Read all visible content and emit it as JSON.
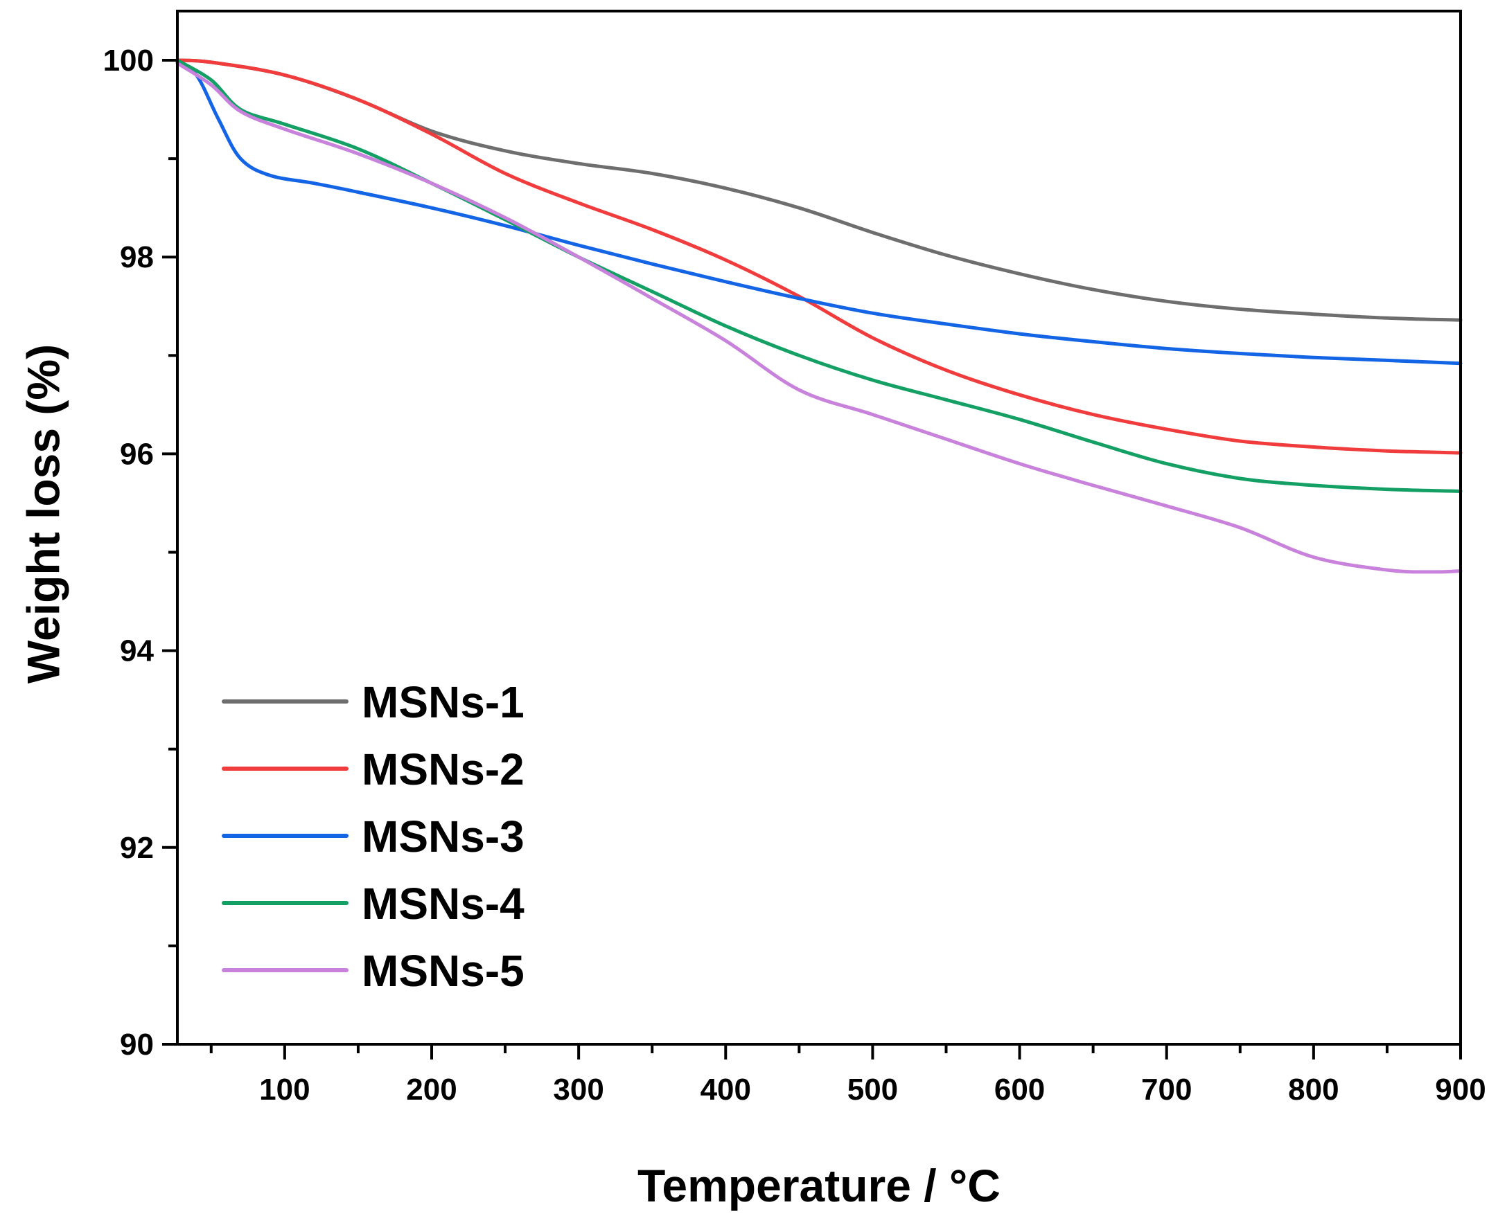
{
  "chart_data": {
    "type": "line",
    "title": "",
    "xlabel": "Temperature / °C",
    "ylabel": "Weight loss (%)",
    "xlim": [
      27,
      900
    ],
    "ylim": [
      90,
      100.5
    ],
    "x_ticks": [
      100,
      200,
      300,
      400,
      500,
      600,
      700,
      800,
      900
    ],
    "x_minor_ticks": [
      50,
      150,
      250,
      350,
      450,
      550,
      650,
      750,
      850
    ],
    "y_ticks": [
      90,
      92,
      94,
      96,
      98,
      100
    ],
    "y_minor_ticks": [
      91,
      93,
      95,
      97,
      99
    ],
    "legend_position": "bottom-left",
    "series": [
      {
        "name": "MSNs-1",
        "color": "#6e6e6e",
        "points": [
          [
            27,
            100.0
          ],
          [
            50,
            99.98
          ],
          [
            100,
            99.85
          ],
          [
            150,
            99.6
          ],
          [
            200,
            99.28
          ],
          [
            250,
            99.08
          ],
          [
            300,
            98.95
          ],
          [
            350,
            98.85
          ],
          [
            400,
            98.7
          ],
          [
            450,
            98.5
          ],
          [
            500,
            98.25
          ],
          [
            550,
            98.02
          ],
          [
            600,
            97.83
          ],
          [
            650,
            97.67
          ],
          [
            700,
            97.55
          ],
          [
            750,
            97.47
          ],
          [
            800,
            97.42
          ],
          [
            850,
            97.38
          ],
          [
            900,
            97.36
          ]
        ]
      },
      {
        "name": "MSNs-2",
        "color": "#f03c3c",
        "points": [
          [
            27,
            100.0
          ],
          [
            50,
            99.98
          ],
          [
            100,
            99.85
          ],
          [
            150,
            99.6
          ],
          [
            200,
            99.25
          ],
          [
            250,
            98.85
          ],
          [
            300,
            98.55
          ],
          [
            350,
            98.28
          ],
          [
            400,
            97.97
          ],
          [
            450,
            97.6
          ],
          [
            500,
            97.18
          ],
          [
            550,
            96.85
          ],
          [
            600,
            96.6
          ],
          [
            650,
            96.4
          ],
          [
            700,
            96.25
          ],
          [
            750,
            96.13
          ],
          [
            800,
            96.07
          ],
          [
            850,
            96.03
          ],
          [
            900,
            96.01
          ]
        ]
      },
      {
        "name": "MSNs-3",
        "color": "#1464e6",
        "points": [
          [
            27,
            99.98
          ],
          [
            40,
            99.85
          ],
          [
            55,
            99.4
          ],
          [
            70,
            99.0
          ],
          [
            90,
            98.83
          ],
          [
            120,
            98.75
          ],
          [
            150,
            98.66
          ],
          [
            200,
            98.5
          ],
          [
            250,
            98.32
          ],
          [
            300,
            98.12
          ],
          [
            350,
            97.93
          ],
          [
            400,
            97.75
          ],
          [
            450,
            97.58
          ],
          [
            500,
            97.43
          ],
          [
            550,
            97.32
          ],
          [
            600,
            97.22
          ],
          [
            650,
            97.14
          ],
          [
            700,
            97.07
          ],
          [
            750,
            97.02
          ],
          [
            800,
            96.98
          ],
          [
            850,
            96.95
          ],
          [
            900,
            96.92
          ]
        ]
      },
      {
        "name": "MSNs-4",
        "color": "#14a064",
        "points": [
          [
            27,
            100.0
          ],
          [
            50,
            99.8
          ],
          [
            70,
            99.5
          ],
          [
            100,
            99.35
          ],
          [
            150,
            99.1
          ],
          [
            200,
            98.75
          ],
          [
            250,
            98.38
          ],
          [
            300,
            98.0
          ],
          [
            350,
            97.65
          ],
          [
            400,
            97.3
          ],
          [
            450,
            97.0
          ],
          [
            500,
            96.75
          ],
          [
            550,
            96.55
          ],
          [
            600,
            96.35
          ],
          [
            650,
            96.12
          ],
          [
            700,
            95.9
          ],
          [
            750,
            95.75
          ],
          [
            800,
            95.68
          ],
          [
            850,
            95.64
          ],
          [
            900,
            95.62
          ]
        ]
      },
      {
        "name": "MSNs-5",
        "color": "#c882dc",
        "points": [
          [
            27,
            99.97
          ],
          [
            50,
            99.75
          ],
          [
            70,
            99.48
          ],
          [
            100,
            99.3
          ],
          [
            150,
            99.05
          ],
          [
            200,
            98.75
          ],
          [
            250,
            98.4
          ],
          [
            300,
            98.0
          ],
          [
            350,
            97.58
          ],
          [
            400,
            97.15
          ],
          [
            450,
            96.65
          ],
          [
            500,
            96.4
          ],
          [
            550,
            96.15
          ],
          [
            600,
            95.9
          ],
          [
            650,
            95.68
          ],
          [
            700,
            95.47
          ],
          [
            750,
            95.25
          ],
          [
            800,
            94.95
          ],
          [
            850,
            94.82
          ],
          [
            880,
            94.8
          ],
          [
            900,
            94.81
          ]
        ]
      }
    ]
  }
}
